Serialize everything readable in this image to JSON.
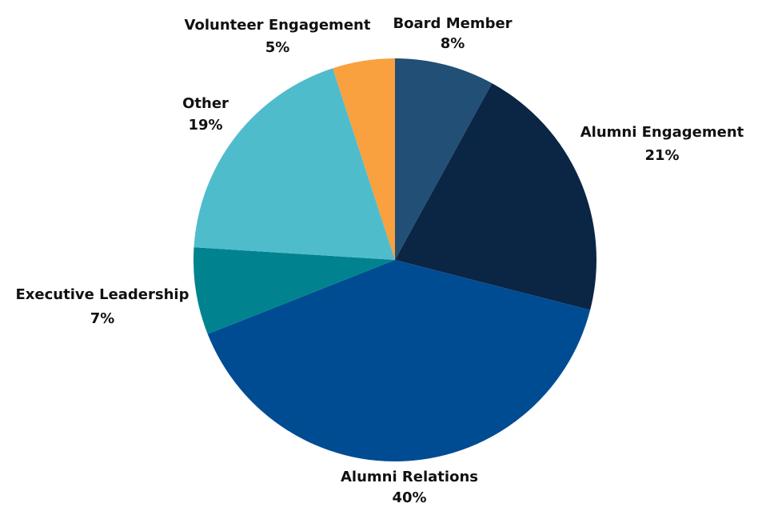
{
  "chart_data": {
    "type": "pie",
    "categories": [
      "Board Member",
      "Alumni Engagement",
      "Alumni Relations",
      "Executive Leadership",
      "Other",
      "Volunteer Engagement"
    ],
    "values": [
      8,
      21,
      40,
      7,
      19,
      5
    ],
    "value_labels": [
      "8%",
      "21%",
      "40%",
      "7%",
      "19%",
      "5%"
    ],
    "colors": [
      "#224f75",
      "#0b2545",
      "#004c93",
      "#00838f",
      "#4fbccc",
      "#f9a03f"
    ]
  }
}
